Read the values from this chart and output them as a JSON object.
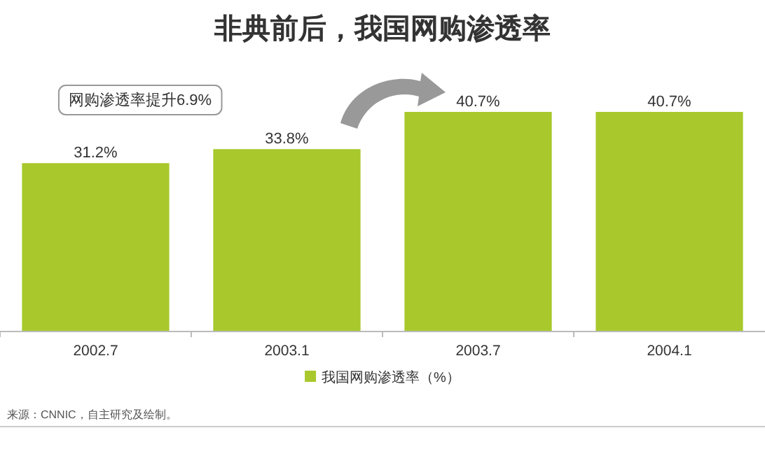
{
  "chart_data": {
    "type": "bar",
    "title": "非典前后，我国网购渗透率",
    "categories": [
      "2002.7",
      "2003.1",
      "2003.7",
      "2004.1"
    ],
    "series": [
      {
        "name": "我国网购渗透率（%）",
        "color": "#a8c82c",
        "values": [
          31.2,
          33.8,
          40.7,
          40.7
        ],
        "value_labels": [
          "31.2%",
          "33.8%",
          "40.7%",
          "40.7%"
        ]
      }
    ],
    "legend": "bottom",
    "annotations": [
      "网购渗透率提升6.9%",
      "来源：CNNIC，自主研究及绘制。"
    ]
  }
}
